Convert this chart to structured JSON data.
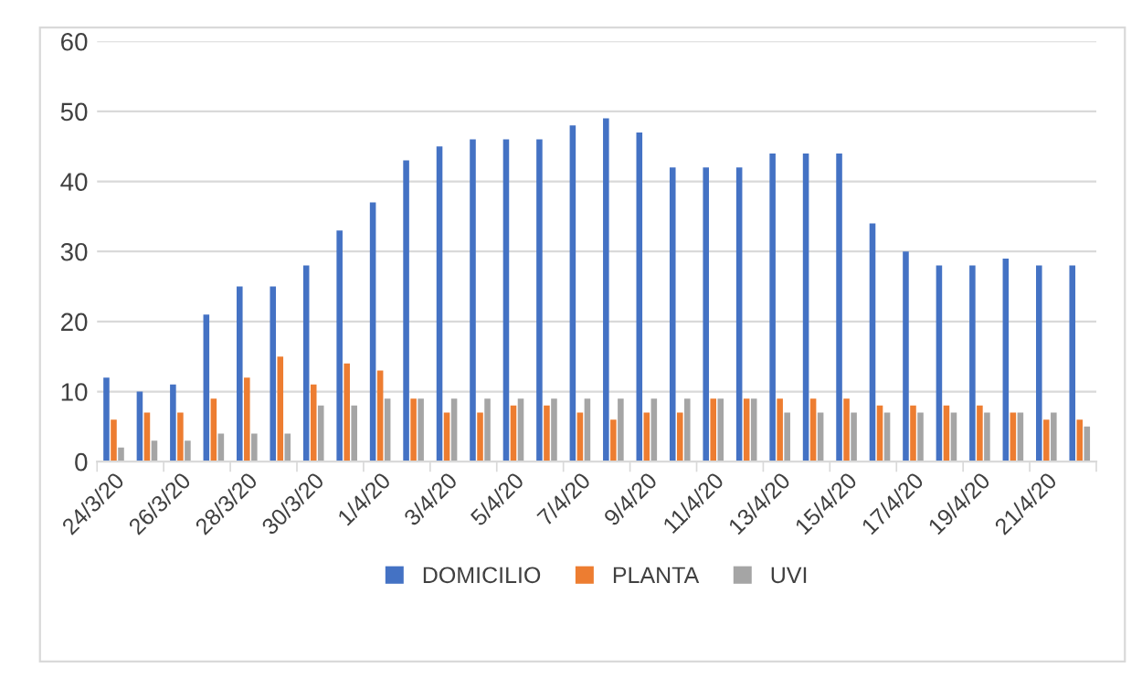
{
  "chart_data": {
    "type": "bar",
    "categories": [
      "24/3/20",
      null,
      "26/3/20",
      null,
      "28/3/20",
      null,
      "30/3/20",
      null,
      "1/4/20",
      null,
      "3/4/20",
      null,
      "5/4/20",
      null,
      "7/4/20",
      null,
      "9/4/20",
      null,
      "11/4/20",
      null,
      "13/4/20",
      null,
      "15/4/20",
      null,
      "17/4/20",
      null,
      "19/4/20",
      null,
      "21/4/20",
      null
    ],
    "series": [
      {
        "name": "DOMICILIO",
        "color": "#4472c4",
        "values": [
          12,
          10,
          11,
          21,
          25,
          25,
          28,
          33,
          37,
          43,
          45,
          46,
          46,
          46,
          48,
          49,
          47,
          42,
          42,
          42,
          44,
          44,
          44,
          34,
          30,
          28,
          28,
          29,
          28,
          28
        ]
      },
      {
        "name": "PLANTA",
        "color": "#ed7d31",
        "values": [
          6,
          7,
          7,
          9,
          12,
          15,
          11,
          14,
          13,
          9,
          7,
          7,
          8,
          8,
          7,
          6,
          7,
          7,
          9,
          9,
          9,
          9,
          9,
          8,
          8,
          8,
          8,
          7,
          6,
          6
        ]
      },
      {
        "name": "UVI",
        "color": "#a5a5a5",
        "values": [
          2,
          3,
          3,
          4,
          4,
          4,
          8,
          8,
          9,
          9,
          9,
          9,
          9,
          9,
          9,
          9,
          9,
          9,
          9,
          9,
          7,
          7,
          7,
          7,
          7,
          7,
          7,
          7,
          7,
          5
        ]
      }
    ],
    "ylim": [
      0,
      60
    ],
    "yticks": [
      0,
      10,
      20,
      30,
      40,
      50,
      60
    ],
    "grid": "y",
    "legend": "bottom"
  }
}
